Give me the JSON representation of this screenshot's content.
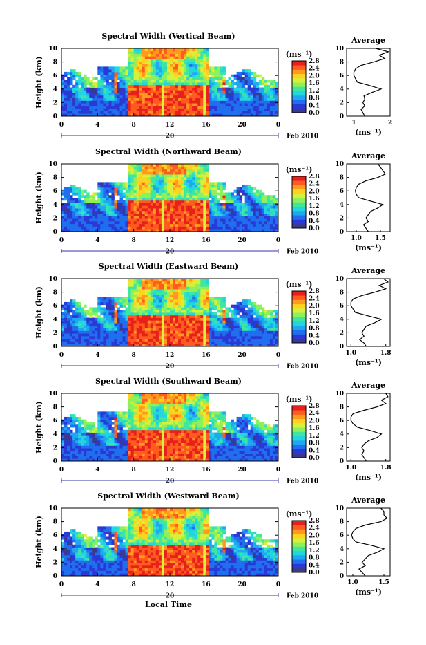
{
  "colors": {
    "colorbar": [
      "#3a3a8c",
      "#2a39d6",
      "#1f6fee",
      "#1fa8f0",
      "#22d6e0",
      "#3fe6a0",
      "#8ef05a",
      "#d9f03a",
      "#ffd21f",
      "#ff9a1f",
      "#ff5a1f",
      "#e8201c"
    ],
    "line": "#000000"
  },
  "shared": {
    "xticks": [
      "0",
      "4",
      "8",
      "12",
      "16",
      "20",
      "0"
    ],
    "yticks": [
      "0",
      "2",
      "4",
      "6",
      "8",
      "10"
    ],
    "ylabel": "Height (km)",
    "date_day": "20",
    "date_suffix": "Feb 2010",
    "cbar_unit": "(ms⁻¹)",
    "cbar_ticks": [
      "0.0",
      "0.4",
      "0.8",
      "1.2",
      "1.6",
      "2.0",
      "2.4",
      "2.8"
    ],
    "avg_title": "Average",
    "avg_unit": "(ms⁻¹)",
    "xlabel": "Local Time"
  },
  "chart_data": [
    {
      "type": "heatmap",
      "title": "Spectral Width (Vertical Beam)",
      "xlabel": "",
      "ylabel": "Height (km)",
      "xlim": [
        0,
        24
      ],
      "ylim": [
        0,
        10
      ],
      "x_ticks": [
        "0",
        "4",
        "8",
        "12",
        "16",
        "20",
        "0"
      ],
      "colorbar": {
        "unit": "(ms⁻¹)",
        "range": [
          0.0,
          2.8
        ],
        "ticks": [
          "0.0",
          "0.4",
          "0.8",
          "1.2",
          "1.6",
          "2.0",
          "2.4",
          "2.8"
        ]
      },
      "date": "20 Feb 2010",
      "average_profile": {
        "title": "Average",
        "xlabel": "(ms⁻¹)",
        "x_ticks": [
          "1",
          "2"
        ],
        "xlim": [
          0.8,
          2.0
        ],
        "ylim": [
          0,
          10
        ],
        "height": [
          0,
          0.5,
          1,
          1.5,
          2,
          2.5,
          3,
          3.5,
          4,
          4.5,
          5,
          5.5,
          6,
          6.5,
          7,
          7.5,
          8,
          8.5,
          9,
          9.5,
          10
        ],
        "width": [
          1.3,
          1.25,
          1.2,
          1.3,
          1.25,
          1.3,
          1.28,
          1.5,
          1.75,
          1.45,
          1.1,
          1.05,
          1.0,
          1.0,
          1.05,
          1.2,
          1.55,
          1.85,
          1.7,
          1.95,
          1.6
        ]
      }
    },
    {
      "type": "heatmap",
      "title": "Spectral Width (Northward Beam)",
      "xlabel": "",
      "ylabel": "Height (km)",
      "xlim": [
        0,
        24
      ],
      "ylim": [
        0,
        10
      ],
      "x_ticks": [
        "0",
        "4",
        "8",
        "12",
        "16",
        "20",
        "0"
      ],
      "colorbar": {
        "unit": "(ms⁻¹)",
        "range": [
          0.0,
          2.8
        ],
        "ticks": [
          "0.0",
          "0.4",
          "0.8",
          "1.2",
          "1.6",
          "2.0",
          "2.4",
          "2.8"
        ]
      },
      "date": "20 Feb 2010",
      "average_profile": {
        "title": "Average",
        "xlabel": "(ms⁻¹)",
        "x_ticks": [
          "1.0",
          "1.5"
        ],
        "xlim": [
          0.8,
          1.7
        ],
        "ylim": [
          0,
          10
        ],
        "height": [
          0,
          0.5,
          1,
          1.5,
          2,
          2.5,
          3,
          3.5,
          4,
          4.5,
          5,
          5.5,
          6,
          6.5,
          7,
          7.5,
          8,
          8.5,
          9,
          9.5,
          10
        ],
        "width": [
          1.25,
          1.2,
          1.15,
          1.25,
          1.2,
          1.25,
          1.3,
          1.45,
          1.55,
          1.3,
          1.05,
          1.0,
          0.98,
          1.0,
          1.05,
          1.2,
          1.45,
          1.6,
          1.55,
          1.5,
          1.45
        ]
      }
    },
    {
      "type": "heatmap",
      "title": "Spectral Width (Eastward Beam)",
      "xlabel": "",
      "ylabel": "Height (km)",
      "xlim": [
        0,
        24
      ],
      "ylim": [
        0,
        10
      ],
      "x_ticks": [
        "0",
        "4",
        "8",
        "12",
        "16",
        "20",
        "0"
      ],
      "colorbar": {
        "unit": "(ms⁻¹)",
        "range": [
          0.0,
          2.8
        ],
        "ticks": [
          "0.0",
          "0.4",
          "0.8",
          "1.2",
          "1.6",
          "2.0",
          "2.4",
          "2.8"
        ]
      },
      "date": "20 Feb 2010",
      "average_profile": {
        "title": "Average",
        "xlabel": "(ms⁻¹)",
        "x_ticks": [
          "1.0",
          "1.8"
        ],
        "xlim": [
          0.9,
          1.9
        ],
        "ylim": [
          0,
          10
        ],
        "height": [
          0,
          0.5,
          1,
          1.5,
          2,
          2.5,
          3,
          3.5,
          4,
          4.5,
          5,
          5.5,
          6,
          6.5,
          7,
          7.5,
          8,
          8.5,
          9,
          9.5,
          10
        ],
        "width": [
          1.35,
          1.3,
          1.2,
          1.3,
          1.25,
          1.3,
          1.35,
          1.55,
          1.7,
          1.4,
          1.1,
          1.05,
          1.0,
          1.0,
          1.05,
          1.25,
          1.55,
          1.8,
          1.65,
          1.85,
          1.75
        ]
      }
    },
    {
      "type": "heatmap",
      "title": "Spectral Width (Southward Beam)",
      "xlabel": "",
      "ylabel": "Height (km)",
      "xlim": [
        0,
        24
      ],
      "ylim": [
        0,
        10
      ],
      "x_ticks": [
        "0",
        "4",
        "8",
        "12",
        "16",
        "20",
        "0"
      ],
      "colorbar": {
        "unit": "(ms⁻¹)",
        "range": [
          0.0,
          2.8
        ],
        "ticks": [
          "0.0",
          "0.4",
          "0.8",
          "1.2",
          "1.6",
          "2.0",
          "2.4",
          "2.8"
        ]
      },
      "date": "20 Feb 2010",
      "average_profile": {
        "title": "Average",
        "xlabel": "(ms⁻¹)",
        "x_ticks": [
          "1.0",
          "1.8"
        ],
        "xlim": [
          0.9,
          1.9
        ],
        "ylim": [
          0,
          10
        ],
        "height": [
          0,
          0.5,
          1,
          1.5,
          2,
          2.5,
          3,
          3.5,
          4,
          4.5,
          5,
          5.5,
          6,
          6.5,
          7,
          7.5,
          8,
          8.5,
          9,
          9.5,
          10
        ],
        "width": [
          1.35,
          1.3,
          1.25,
          1.3,
          1.25,
          1.3,
          1.4,
          1.6,
          1.7,
          1.45,
          1.15,
          1.05,
          1.0,
          1.0,
          1.05,
          1.3,
          1.6,
          1.8,
          1.7,
          1.85,
          1.8
        ]
      }
    },
    {
      "type": "heatmap",
      "title": "Spectral Width (Westward Beam)",
      "xlabel": "Local Time",
      "ylabel": "Height (km)",
      "xlim": [
        0,
        24
      ],
      "ylim": [
        0,
        10
      ],
      "x_ticks": [
        "0",
        "4",
        "8",
        "12",
        "16",
        "20",
        "0"
      ],
      "colorbar": {
        "unit": "(ms⁻¹)",
        "range": [
          0.0,
          2.8
        ],
        "ticks": [
          "0.0",
          "0.4",
          "0.8",
          "1.2",
          "1.6",
          "2.0",
          "2.4",
          "2.8"
        ]
      },
      "date": "20 Feb 2010",
      "average_profile": {
        "title": "Average",
        "xlabel": "(ms⁻¹)",
        "x_ticks": [
          "1.0",
          "1.5"
        ],
        "xlim": [
          0.9,
          1.6
        ],
        "ylim": [
          0,
          10
        ],
        "height": [
          0,
          0.5,
          1,
          1.5,
          2,
          2.5,
          3,
          3.5,
          4,
          4.5,
          5,
          5.5,
          6,
          6.5,
          7,
          7.5,
          8,
          8.5,
          9,
          9.5,
          10
        ],
        "width": [
          1.2,
          1.15,
          1.1,
          1.2,
          1.15,
          1.2,
          1.25,
          1.4,
          1.5,
          1.3,
          1.05,
          1.0,
          0.98,
          1.0,
          1.05,
          1.2,
          1.45,
          1.55,
          1.5,
          1.5,
          1.45
        ]
      }
    }
  ]
}
